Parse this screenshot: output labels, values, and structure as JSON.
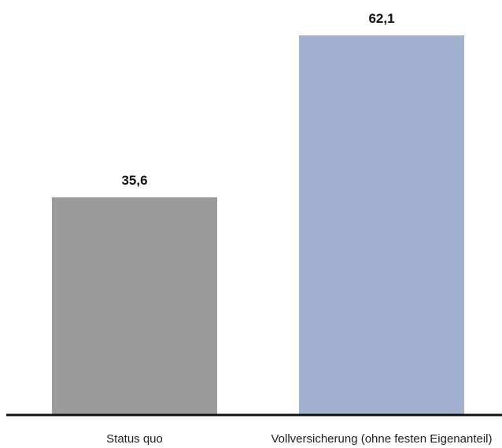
{
  "chart_data": {
    "type": "bar",
    "categories": [
      "Status quo",
      "Vollversicherung (ohne festen Eigenanteil)"
    ],
    "values": [
      35.6,
      62.1
    ],
    "value_labels": [
      "35,6",
      "62,1"
    ],
    "colors": [
      "#9b9b9b",
      "#a2b1cf"
    ],
    "axis_color": "#111111",
    "title": "",
    "xlabel": "",
    "ylabel": "",
    "ylim": [
      0,
      62.1
    ],
    "grid": false,
    "legend": "none"
  }
}
